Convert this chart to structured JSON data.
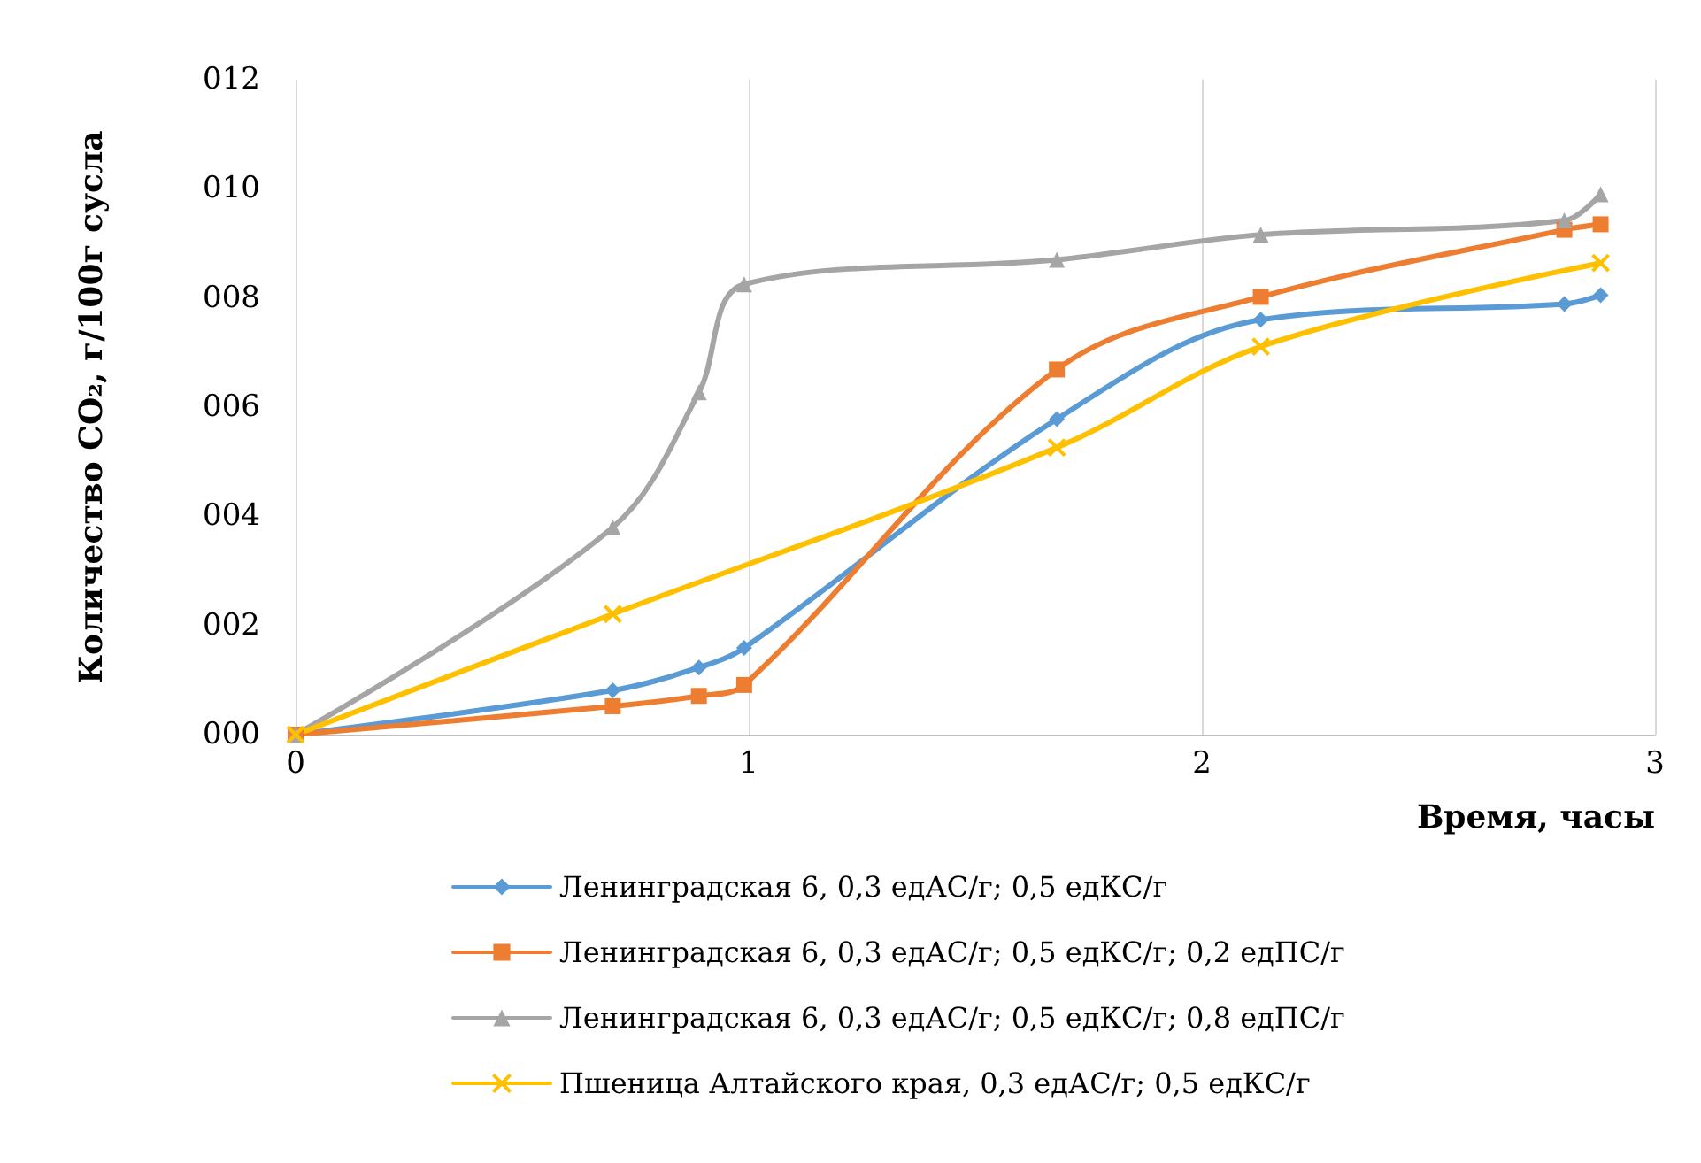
{
  "chart_data": {
    "type": "line",
    "xlabel": "Время, часы",
    "ylabel": "Количество CO₂, г/100г сусла",
    "xlim": [
      0,
      3
    ],
    "xticks": [
      0,
      1,
      2,
      3
    ],
    "ylim": [
      0,
      12
    ],
    "yticks": [
      {
        "value": 0,
        "label": "000"
      },
      {
        "value": 2,
        "label": "002"
      },
      {
        "value": 4,
        "label": "004"
      },
      {
        "value": 6,
        "label": "006"
      },
      {
        "value": 8,
        "label": "008"
      },
      {
        "value": 10,
        "label": "010"
      },
      {
        "value": 12,
        "label": "012"
      }
    ],
    "grid": "x",
    "legend": "bottom",
    "series": [
      {
        "name": "Ленинградская 6, 0,3 едАС/г; 0,5 едКС/г",
        "color": "#5b9bd5",
        "marker": "diamond",
        "x": [
          0,
          0.7,
          0.89,
          0.99,
          1.68,
          2.13,
          2.8,
          2.88
        ],
        "values": [
          0,
          0.81,
          1.23,
          1.59,
          5.78,
          7.6,
          7.89,
          8.05
        ]
      },
      {
        "name": "Ленинградская 6, 0,3 едАС/г; 0,5 едКС/г; 0,2 едПС/г",
        "color": "#ed7d31",
        "marker": "square",
        "x": [
          0,
          0.7,
          0.89,
          0.99,
          1.68,
          2.13,
          2.8,
          2.88
        ],
        "values": [
          0,
          0.52,
          0.71,
          0.91,
          6.69,
          8.02,
          9.25,
          9.35
        ]
      },
      {
        "name": "Ленинградская 6, 0,3 едАС/г; 0,5 едКС/г; 0,8 едПС/г",
        "color": "#a5a5a5",
        "marker": "triangle",
        "x": [
          0,
          0.7,
          0.89,
          0.99,
          1.68,
          2.13,
          2.8,
          2.88
        ],
        "values": [
          0,
          3.8,
          6.27,
          8.25,
          8.7,
          9.16,
          9.42,
          9.9
        ]
      },
      {
        "name": "Пшеница Алтайского края, 0,3 едАС/г; 0,5 едКС/г",
        "color": "#ffc000",
        "marker": "cross",
        "x": [
          0,
          0.7,
          1.68,
          2.13,
          2.88
        ],
        "values": [
          0,
          2.21,
          5.26,
          7.11,
          8.64
        ]
      }
    ]
  }
}
